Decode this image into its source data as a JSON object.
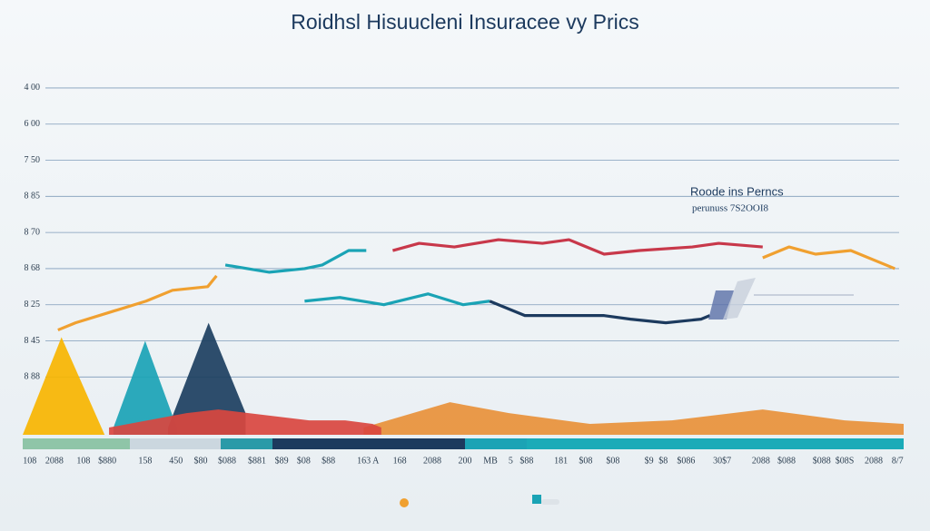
{
  "chart_data": {
    "type": "line",
    "title": "Roidhsl Hisuucleni Insuracee vy Prics",
    "annotation": {
      "title": "Roode ins Perncs",
      "subtitle": "perunuss 7S2OOI8"
    },
    "grid": true,
    "xlim": [
      0,
      100
    ],
    "ylim": [
      -0.6,
      9.4
    ],
    "yticks": [
      {
        "value": 9,
        "label": "4 00"
      },
      {
        "value": 8,
        "label": "6 00"
      },
      {
        "value": 7,
        "label": "7 50"
      },
      {
        "value": 6,
        "label": "8 85"
      },
      {
        "value": 5,
        "label": "8 70"
      },
      {
        "value": 4,
        "label": "8 68"
      },
      {
        "value": 3,
        "label": "8 25"
      },
      {
        "value": 2,
        "label": "8 45"
      },
      {
        "value": 1,
        "label": "8 88"
      }
    ],
    "xticks": [
      {
        "value": 0.8,
        "label": "108"
      },
      {
        "value": 3.6,
        "label": "2088"
      },
      {
        "value": 6.9,
        "label": "108"
      },
      {
        "value": 9.6,
        "label": "$880"
      },
      {
        "value": 13.9,
        "label": "158"
      },
      {
        "value": 17.4,
        "label": "450"
      },
      {
        "value": 20.2,
        "label": "$80"
      },
      {
        "value": 23.2,
        "label": "$088"
      },
      {
        "value": 26.6,
        "label": "$881"
      },
      {
        "value": 29.4,
        "label": "$89"
      },
      {
        "value": 31.9,
        "label": "$08"
      },
      {
        "value": 34.7,
        "label": "$88"
      },
      {
        "value": 39.2,
        "label": "163 A"
      },
      {
        "value": 42.8,
        "label": "168"
      },
      {
        "value": 46.5,
        "label": "2088"
      },
      {
        "value": 50.2,
        "label": "200"
      },
      {
        "value": 53.1,
        "label": "MB"
      },
      {
        "value": 55.4,
        "label": "5"
      },
      {
        "value": 57.2,
        "label": "$88"
      },
      {
        "value": 61.1,
        "label": "181"
      },
      {
        "value": 63.9,
        "label": "$08"
      },
      {
        "value": 67,
        "label": "$08"
      },
      {
        "value": 71.1,
        "label": "$9"
      },
      {
        "value": 72.7,
        "label": "$8"
      },
      {
        "value": 75.3,
        "label": "$086"
      },
      {
        "value": 79.4,
        "label": "30$7"
      },
      {
        "value": 83.8,
        "label": "2088"
      },
      {
        "value": 86.7,
        "label": "$088"
      },
      {
        "value": 90.7,
        "label": "$088"
      },
      {
        "value": 93.3,
        "label": "$08S"
      },
      {
        "value": 96.6,
        "label": "2088"
      },
      {
        "value": 99.3,
        "label": "8/7"
      }
    ],
    "series": [
      {
        "type": "area",
        "color": "#f7b500",
        "x": [
          0,
          4.4,
          9.3
        ],
        "values": [
          -0.6,
          2.1,
          -0.6
        ]
      },
      {
        "type": "area",
        "color": "#1aa3b5",
        "x": [
          10.3,
          13.9,
          17.5
        ],
        "values": [
          -0.4,
          2.0,
          -0.4
        ]
      },
      {
        "type": "area",
        "color": "#1c3f60",
        "x": [
          16.5,
          21.1,
          25.3
        ],
        "values": [
          -0.4,
          2.5,
          0
        ]
      },
      {
        "type": "area",
        "color": "#e8913a",
        "x": [
          38.7,
          48.5,
          55.2,
          64.4,
          73.7,
          84,
          93.3,
          100
        ],
        "values": [
          -0.4,
          0.3,
          0,
          -0.3,
          -0.2,
          0.1,
          -0.2,
          -0.3
        ]
      },
      {
        "type": "area",
        "color": "#d9473f",
        "x": [
          9.8,
          18.6,
          22.2,
          32.5,
          36.6,
          39.7,
          40.7
        ],
        "values": [
          -0.4,
          0,
          0.1,
          -0.2,
          -0.2,
          -0.3,
          -0.4
        ]
      },
      {
        "type": "line",
        "color": "#f0a030",
        "x": [
          4,
          6,
          10,
          14,
          17,
          21,
          22
        ],
        "values": [
          2.3,
          2.5,
          2.8,
          3.1,
          3.4,
          3.5,
          3.8
        ]
      },
      {
        "type": "line",
        "color": "#1aa3b5",
        "x": [
          23,
          28,
          32,
          34,
          37,
          39
        ],
        "values": [
          4.1,
          3.9,
          4.0,
          4.1,
          4.5,
          4.5
        ]
      },
      {
        "type": "line",
        "color": "#c8384a",
        "x": [
          42,
          45,
          49,
          54,
          59,
          62,
          66,
          70,
          76,
          79,
          84
        ],
        "values": [
          4.5,
          4.7,
          4.6,
          4.8,
          4.7,
          4.8,
          4.4,
          4.5,
          4.6,
          4.7,
          4.6
        ]
      },
      {
        "type": "line",
        "color": "#f0a030",
        "x": [
          84,
          87,
          90,
          94,
          99
        ],
        "values": [
          4.3,
          4.6,
          4.4,
          4.5,
          4.0
        ]
      },
      {
        "type": "line",
        "color": "#1aa3b5",
        "x": [
          32,
          36,
          41,
          46,
          50,
          53
        ],
        "values": [
          3.1,
          3.2,
          3.0,
          3.3,
          3.0,
          3.1
        ]
      },
      {
        "type": "line",
        "color": "#1c3a5e",
        "x": [
          53,
          57,
          61,
          66,
          69,
          73,
          77,
          78
        ],
        "values": [
          3.1,
          2.7,
          2.7,
          2.7,
          2.6,
          2.5,
          2.6,
          2.7
        ]
      }
    ]
  }
}
